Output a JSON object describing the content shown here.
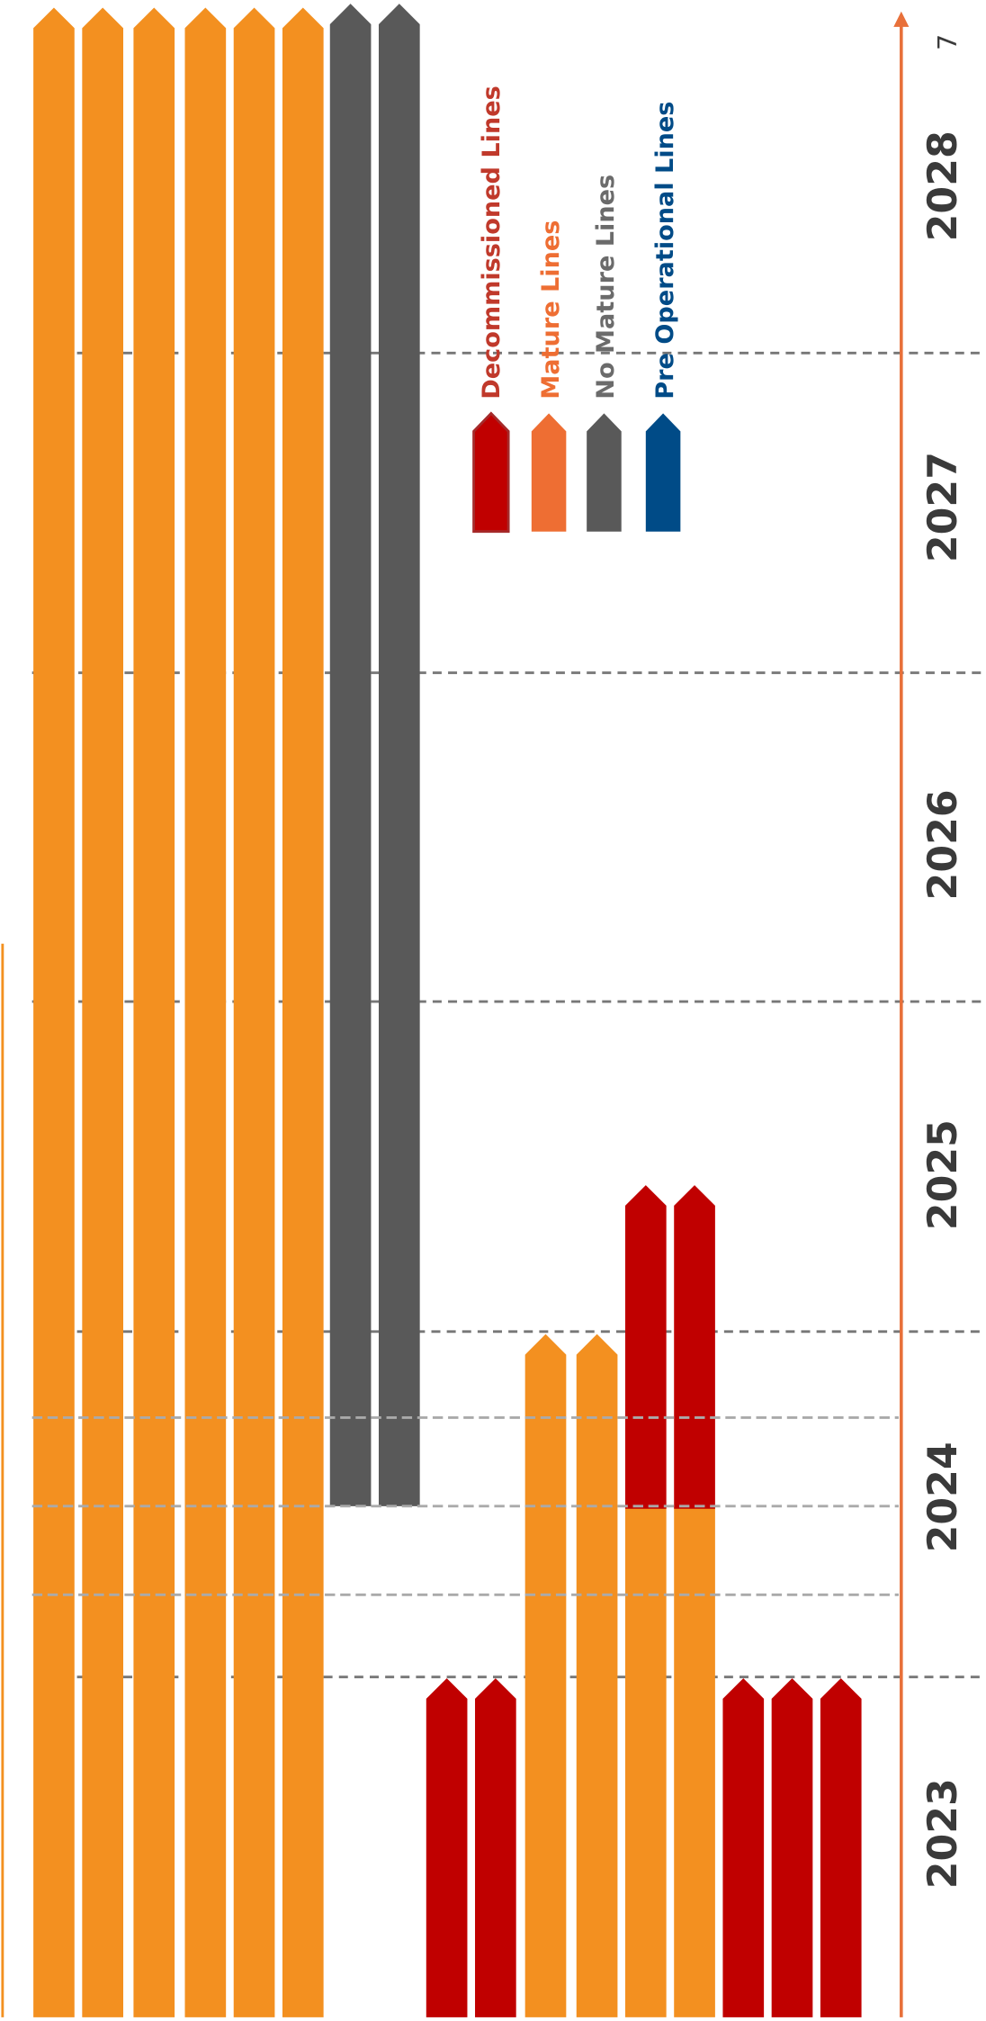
{
  "timeline": {
    "years": [
      "2023",
      "2024",
      "2025",
      "2026",
      "2027",
      "2028"
    ],
    "page_number": "7"
  },
  "legend": [
    {
      "label": "Decommissioned Lines"
    },
    {
      "label": "Mature Lines"
    },
    {
      "label": "No Mature Lines"
    },
    {
      "label": "Pre Operational Lines"
    }
  ]
}
